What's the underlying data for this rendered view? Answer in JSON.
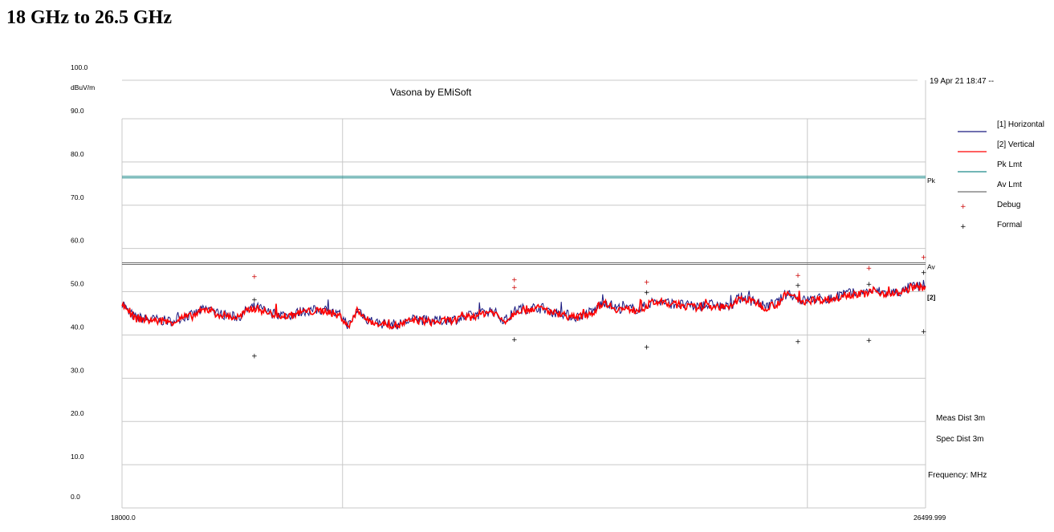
{
  "heading": "18 GHz to 26.5 GHz",
  "chart_data": {
    "type": "line",
    "title": "Vasona by EMiSoft",
    "timestamp": "19 Apr 21 18:47 --",
    "ylabel": "dBuV/m",
    "xlabel": "Frequency: MHz",
    "xlim": [
      18000.0,
      26499.999
    ],
    "ylim": [
      0,
      100
    ],
    "y_ticks": [
      "0.0",
      "10.0",
      "20.0",
      "30.0",
      "40.0",
      "50.0",
      "60.0",
      "70.0",
      "80.0",
      "90.0",
      "100.0"
    ],
    "x_tick_labels": [
      "18000.0",
      "26499.999"
    ],
    "x_gridlines": [
      20333,
      25250
    ],
    "grid": true,
    "legend_position": "right",
    "series": [
      {
        "name": "[1] Horizontal",
        "color": "#1a1a80",
        "x": [
          18000,
          18080,
          18150,
          18300,
          18500,
          18700,
          18900,
          19050,
          19200,
          19400,
          19600,
          19750,
          19950,
          20150,
          20300,
          20400,
          20500,
          20600,
          20700,
          20900,
          21100,
          21300,
          21500,
          21700,
          21900,
          22050,
          22200,
          22400,
          22600,
          22800,
          22950,
          23100,
          23250,
          23450,
          23650,
          23850,
          24050,
          24250,
          24400,
          24550,
          24700,
          24800,
          24900,
          25050,
          25200,
          25350,
          25500,
          25650,
          25800,
          25950,
          26100,
          26250,
          26350,
          26499
        ],
        "y": [
          47.5,
          45.0,
          44.0,
          43.6,
          43.2,
          44.4,
          46.0,
          44.8,
          44.2,
          46.4,
          45.0,
          44.6,
          45.6,
          45.8,
          44.6,
          42.4,
          45.8,
          43.6,
          42.8,
          42.4,
          43.6,
          43.2,
          43.6,
          44.4,
          45.6,
          43.6,
          46.0,
          46.4,
          45.2,
          44.2,
          45.2,
          47.6,
          46.2,
          46.0,
          47.8,
          47.2,
          46.6,
          47.0,
          46.4,
          48.6,
          47.8,
          46.6,
          47.2,
          49.6,
          48.0,
          48.4,
          48.4,
          49.6,
          49.6,
          50.2,
          49.8,
          50.0,
          51.2,
          51.2
        ]
      },
      {
        "name": "[2] Vertical",
        "color": "#ff0000",
        "x": [
          18000,
          18080,
          18150,
          18300,
          18500,
          18700,
          18900,
          19050,
          19200,
          19400,
          19600,
          19750,
          19950,
          20150,
          20300,
          20400,
          20500,
          20600,
          20700,
          20900,
          21100,
          21300,
          21500,
          21700,
          21900,
          22050,
          22200,
          22400,
          22600,
          22800,
          22950,
          23100,
          23250,
          23450,
          23650,
          23850,
          24050,
          24250,
          24400,
          24550,
          24700,
          24800,
          24900,
          25050,
          25200,
          25350,
          25500,
          25650,
          25800,
          25950,
          26100,
          26250,
          26350,
          26499
        ],
        "y": [
          47.2,
          44.8,
          43.8,
          43.4,
          43.0,
          44.2,
          45.8,
          44.6,
          44.0,
          46.2,
          44.8,
          44.4,
          45.4,
          45.6,
          44.4,
          42.2,
          45.6,
          43.4,
          42.6,
          42.2,
          43.4,
          43.0,
          43.4,
          44.2,
          45.4,
          43.4,
          45.8,
          46.2,
          45.0,
          44.0,
          45.0,
          47.4,
          46.0,
          45.8,
          47.6,
          47.0,
          46.4,
          46.8,
          46.2,
          48.4,
          47.6,
          46.4,
          47.0,
          49.4,
          47.8,
          48.2,
          48.2,
          49.4,
          49.4,
          50.0,
          49.6,
          49.8,
          51.0,
          51.0
        ]
      },
      {
        "name": "Pk Lmt",
        "color": "#1f8a8a",
        "x": [
          18000,
          26499.999
        ],
        "y": [
          76.5,
          76.5
        ]
      },
      {
        "name": "Av Lmt",
        "color": "#707070",
        "x": [
          18000,
          26499.999
        ],
        "y": [
          56.5,
          56.5
        ]
      }
    ],
    "markers": [
      {
        "name": "Debug",
        "symbol": "+",
        "color": "#cc0000",
        "x": [
          19400,
          22150,
          22150,
          23550,
          25150,
          25900,
          26480
        ],
        "y": [
          53.5,
          52.8,
          51.0,
          52.2,
          53.8,
          55.5,
          58.0
        ]
      },
      {
        "name": "Formal",
        "symbol": "+",
        "color": "#000000",
        "x": [
          19400,
          19400,
          22150,
          23550,
          23550,
          25150,
          25150,
          25900,
          25900,
          26480,
          26480
        ],
        "y": [
          48.2,
          35.2,
          39.0,
          49.8,
          37.2,
          51.5,
          38.5,
          51.8,
          38.8,
          54.5,
          40.8
        ]
      }
    ],
    "line_labels": [
      {
        "text": "Pk",
        "y": 76.5
      },
      {
        "text": "Av",
        "y": 56.5
      },
      {
        "text": "[2]",
        "y": 49.5
      }
    ],
    "annotations": [
      "Meas Dist 3m",
      "Spec Dist 3m"
    ]
  }
}
